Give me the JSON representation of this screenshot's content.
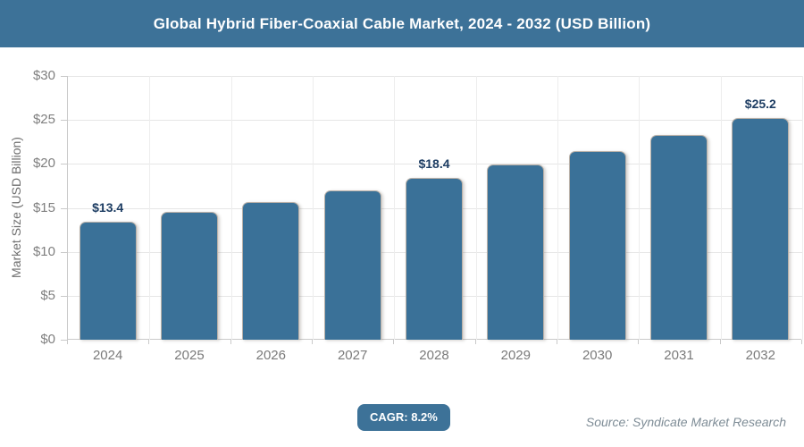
{
  "chart_data": {
    "type": "bar",
    "title": "Global Hybrid Fiber-Coaxial Cable Market, 2024 - 2032 (USD Billion)",
    "ylabel": "Market Size (USD Billion)",
    "xlabel": "",
    "categories": [
      "2024",
      "2025",
      "2026",
      "2027",
      "2028",
      "2029",
      "2030",
      "2031",
      "2032"
    ],
    "values": [
      13.4,
      14.5,
      15.7,
      17.0,
      18.4,
      19.9,
      21.5,
      23.3,
      25.2
    ],
    "data_labels": [
      "$13.4",
      "",
      "",
      "",
      "$18.4",
      "",
      "",
      "",
      "$25.2"
    ],
    "ylim": [
      0,
      30
    ],
    "ytick_step": 5,
    "ytick_labels": [
      "$0",
      "$5",
      "$10",
      "$15",
      "$20",
      "$25",
      "$30"
    ],
    "grid": true,
    "legend": false
  },
  "footer": {
    "cagr_label": "CAGR: 8.2%",
    "source": "Source: Syndicate Market Research"
  },
  "colors": {
    "header_bg": "#3d7298",
    "bar_fill": "#3a7198",
    "bar_border": "#b9b1a9",
    "data_label_text": "#1d3d63",
    "axis_text": "#7f7f7f",
    "grid_line": "#e6e6e6",
    "badge_bg": "#3d7298",
    "source_text": "#7e8c96"
  }
}
